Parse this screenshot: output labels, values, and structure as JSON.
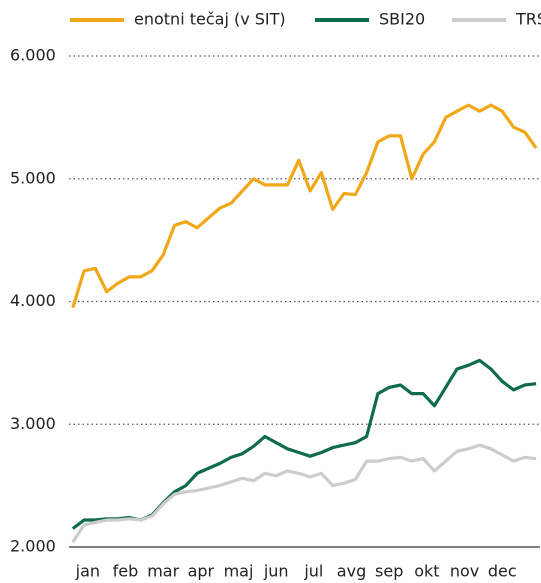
{
  "chart_data": {
    "type": "line",
    "x": [
      0.1,
      0.4,
      0.7,
      1.0,
      1.3,
      1.6,
      1.9,
      2.2,
      2.5,
      2.8,
      3.1,
      3.4,
      3.7,
      4.0,
      4.3,
      4.6,
      4.9,
      5.2,
      5.5,
      5.8,
      6.1,
      6.4,
      6.7,
      7.0,
      7.3,
      7.6,
      7.9,
      8.2,
      8.5,
      8.8,
      9.1,
      9.4,
      9.7,
      10.0,
      10.3,
      10.6,
      10.9,
      11.2,
      11.5,
      11.8,
      12.1,
      12.4
    ],
    "series": [
      {
        "name": "enotni tečaj (v SIT)",
        "color": "#f0a818",
        "values": [
          3950,
          4250,
          4270,
          4080,
          4150,
          4200,
          4200,
          4250,
          4380,
          4620,
          4650,
          4600,
          4680,
          4760,
          4800,
          4900,
          5000,
          4950,
          4950,
          4950,
          5150,
          4900,
          5050,
          4750,
          4880,
          4870,
          5050,
          5300,
          5350,
          5350,
          5000,
          5200,
          5300,
          5500,
          5550,
          5600,
          5550,
          5600,
          5550,
          5420,
          5380,
          5250
        ]
      },
      {
        "name": "SBI20",
        "color": "#0f6b4e",
        "values": [
          2150,
          2220,
          2220,
          2230,
          2230,
          2240,
          2220,
          2260,
          2360,
          2450,
          2500,
          2600,
          2640,
          2680,
          2730,
          2760,
          2820,
          2900,
          2850,
          2800,
          2770,
          2740,
          2770,
          2810,
          2830,
          2850,
          2900,
          3250,
          3300,
          3320,
          3250,
          3250,
          3150,
          3300,
          3450,
          3480,
          3520,
          3450,
          3350,
          3280,
          3320,
          3330
        ]
      },
      {
        "name": "TRS",
        "color": "#cccccc",
        "values": [
          2040,
          2180,
          2200,
          2220,
          2220,
          2230,
          2220,
          2250,
          2350,
          2430,
          2450,
          2460,
          2480,
          2500,
          2530,
          2560,
          2540,
          2600,
          2580,
          2620,
          2600,
          2570,
          2600,
          2500,
          2520,
          2550,
          2700,
          2700,
          2720,
          2730,
          2700,
          2720,
          2620,
          2700,
          2780,
          2800,
          2830,
          2800,
          2750,
          2700,
          2730,
          2720
        ]
      }
    ],
    "xlim": [
      0,
      12.45
    ],
    "xticks": [
      {
        "value": 0.5,
        "label": "jan"
      },
      {
        "value": 1.5,
        "label": "feb"
      },
      {
        "value": 2.5,
        "label": "mar"
      },
      {
        "value": 3.5,
        "label": "apr"
      },
      {
        "value": 4.5,
        "label": "maj"
      },
      {
        "value": 5.5,
        "label": "jun"
      },
      {
        "value": 6.5,
        "label": "jul"
      },
      {
        "value": 7.5,
        "label": "avg"
      },
      {
        "value": 8.5,
        "label": "sep"
      },
      {
        "value": 9.5,
        "label": "okt"
      },
      {
        "value": 10.5,
        "label": "nov"
      },
      {
        "value": 11.5,
        "label": "dec"
      }
    ],
    "ylim": [
      2000,
      6000
    ],
    "yticks": [
      {
        "value": 2000,
        "label": "2.000"
      },
      {
        "value": 3000,
        "label": "3.000"
      },
      {
        "value": 4000,
        "label": "4.000"
      },
      {
        "value": 5000,
        "label": "5.000"
      },
      {
        "value": 6000,
        "label": "6.000"
      }
    ],
    "grid": true
  }
}
